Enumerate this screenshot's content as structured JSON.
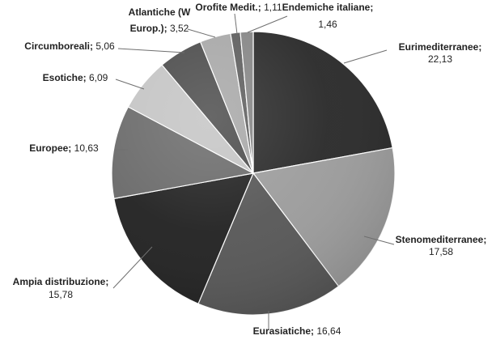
{
  "chart_data": {
    "type": "pie",
    "slices": [
      {
        "label": "Eurimediterranee",
        "value": 22.13,
        "value_text": "22,13",
        "color": "#2a2a2a"
      },
      {
        "label": "Stenomediterranee",
        "value": 17.58,
        "value_text": "17,58",
        "color": "#9c9c9c"
      },
      {
        "label": "Eurasiatiche",
        "value": 16.64,
        "value_text": "16,64",
        "color": "#575757"
      },
      {
        "label": "Ampia distribuzione",
        "value": 15.78,
        "value_text": "15,78",
        "color": "#222222"
      },
      {
        "label": "Europee",
        "value": 10.63,
        "value_text": "10,63",
        "color": "#6a6a6a"
      },
      {
        "label": "Esotiche",
        "value": 6.09,
        "value_text": "6,09",
        "color": "#c4c4c4"
      },
      {
        "label": "Circumboreali",
        "value": 5.06,
        "value_text": "5,06",
        "color": "#4b4b4b"
      },
      {
        "label": "Atlantiche (W Europ.)",
        "value": 3.52,
        "value_text": "3,52",
        "color": "#a7a7a7"
      },
      {
        "label": "Orofite Medit.",
        "value": 1.11,
        "value_text": "1,11",
        "color": "#5d5d5d"
      },
      {
        "label": "Endemiche italiane",
        "value": 1.46,
        "value_text": "1,46",
        "color": "#858585"
      }
    ],
    "title": "",
    "legend": "none"
  }
}
